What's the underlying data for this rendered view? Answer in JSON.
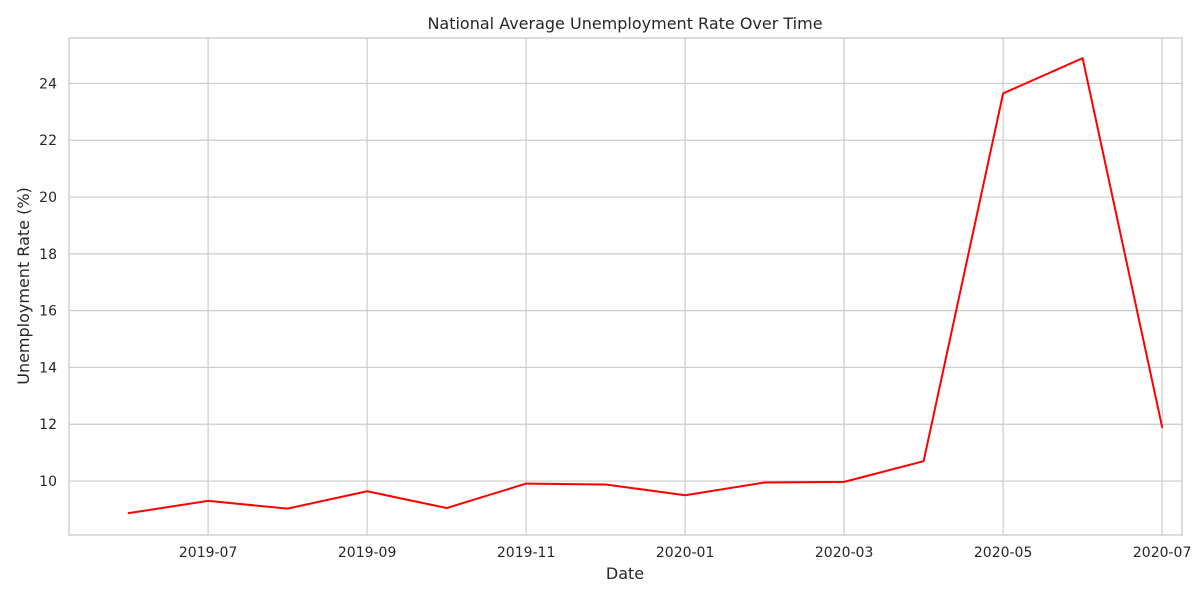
{
  "chart_data": {
    "type": "line",
    "title": "National Average Unemployment Rate Over Time",
    "xlabel": "Date",
    "ylabel": "Unemployment Rate (%)",
    "line_color": "#ff0000",
    "grid": true,
    "x_range_months": [
      -0.75,
      13.25
    ],
    "ylim": [
      8.1,
      25.6
    ],
    "x_ticks": [
      {
        "label": "2019-07",
        "month": 1
      },
      {
        "label": "2019-09",
        "month": 3
      },
      {
        "label": "2019-11",
        "month": 5
      },
      {
        "label": "2020-01",
        "month": 7
      },
      {
        "label": "2020-03",
        "month": 9
      },
      {
        "label": "2020-05",
        "month": 11
      },
      {
        "label": "2020-07",
        "month": 13
      }
    ],
    "y_ticks": [
      10,
      12,
      14,
      16,
      18,
      20,
      22,
      24
    ],
    "series": [
      {
        "name": "National Average",
        "points": [
          {
            "date": "2019-05-31",
            "month": 0,
            "value": 8.87
          },
          {
            "date": "2019-06-30",
            "month": 1,
            "value": 9.3
          },
          {
            "date": "2019-07-31",
            "month": 2,
            "value": 9.03
          },
          {
            "date": "2019-08-31",
            "month": 3,
            "value": 9.64
          },
          {
            "date": "2019-09-30",
            "month": 4,
            "value": 9.05
          },
          {
            "date": "2019-10-31",
            "month": 5,
            "value": 9.91
          },
          {
            "date": "2019-11-30",
            "month": 6,
            "value": 9.88
          },
          {
            "date": "2019-12-31",
            "month": 7,
            "value": 9.5
          },
          {
            "date": "2020-01-31",
            "month": 8,
            "value": 9.95
          },
          {
            "date": "2020-02-29",
            "month": 9,
            "value": 9.97
          },
          {
            "date": "2020-03-31",
            "month": 10,
            "value": 10.7
          },
          {
            "date": "2020-04-30",
            "month": 11,
            "value": 23.65
          },
          {
            "date": "2020-05-31",
            "month": 12,
            "value": 24.89
          },
          {
            "date": "2020-06-30",
            "month": 13,
            "value": 11.9
          }
        ]
      }
    ]
  }
}
